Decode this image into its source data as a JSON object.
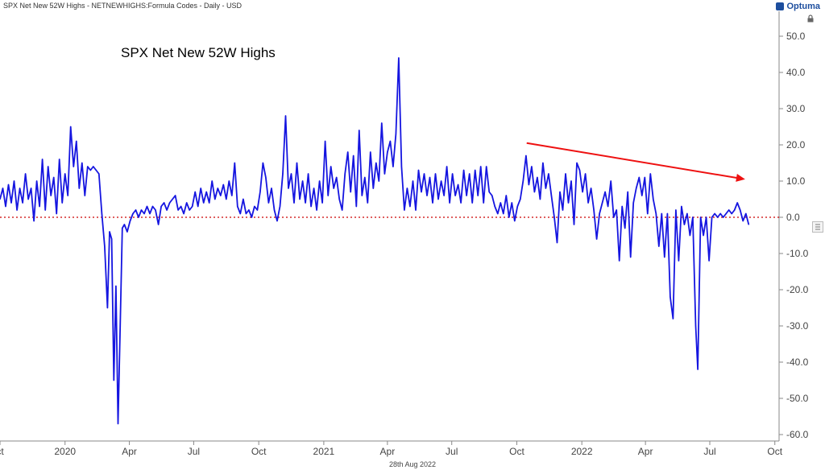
{
  "header": {
    "title": "SPX Net New 52W Highs - NETNEWHIGHS:Formula Codes - Daily - USD"
  },
  "brand": {
    "name": "Optuma",
    "color": "#1d4e9e"
  },
  "footer": {
    "date": "28th Aug 2022"
  },
  "icons": {
    "lock": "lock-icon",
    "side": "settings-icon"
  },
  "chart_data": {
    "type": "line",
    "title": "SPX Net New 52W Highs",
    "xlabel": "",
    "ylabel": "",
    "ylim": [
      -62,
      55
    ],
    "y_ticks": [
      "50.0",
      "40.0",
      "30.0",
      "20.0",
      "10.0",
      "0.0",
      "-10.0",
      "-20.0",
      "-30.0",
      "-40.0",
      "-50.0",
      "-60.0"
    ],
    "x_ticks": [
      "ct",
      "2020",
      "Apr",
      "Jul",
      "Oct",
      "2021",
      "Apr",
      "Jul",
      "Oct",
      "2022",
      "Apr",
      "Jul",
      "Oct"
    ],
    "x_tick_dates": [
      "2019-10-01",
      "2020-01-01",
      "2020-04-01",
      "2020-07-01",
      "2020-10-01",
      "2021-01-01",
      "2021-04-01",
      "2021-07-01",
      "2021-10-01",
      "2022-01-01",
      "2022-04-01",
      "2022-07-01",
      "2022-10-01"
    ],
    "x_range": [
      "2019-10-01",
      "2022-10-07"
    ],
    "reference_line": {
      "y": 0,
      "color": "#cc0000",
      "style": "dotted"
    },
    "trend_arrow": {
      "from": {
        "x": "2021-10-15",
        "y": 20.5
      },
      "to": {
        "x": "2022-08-20",
        "y": 10.5
      },
      "color": "#ee1111"
    },
    "series": [
      {
        "color": "#1515e0",
        "points": [
          [
            "2019-10-01",
            5
          ],
          [
            "2019-10-05",
            8
          ],
          [
            "2019-10-09",
            3
          ],
          [
            "2019-10-13",
            9
          ],
          [
            "2019-10-17",
            4
          ],
          [
            "2019-10-21",
            10
          ],
          [
            "2019-10-25",
            2
          ],
          [
            "2019-10-29",
            8
          ],
          [
            "2019-11-02",
            4
          ],
          [
            "2019-11-06",
            12
          ],
          [
            "2019-11-10",
            5
          ],
          [
            "2019-11-14",
            8
          ],
          [
            "2019-11-18",
            -1
          ],
          [
            "2019-11-22",
            10
          ],
          [
            "2019-11-26",
            3
          ],
          [
            "2019-11-30",
            16
          ],
          [
            "2019-12-04",
            2
          ],
          [
            "2019-12-08",
            14
          ],
          [
            "2019-12-12",
            6
          ],
          [
            "2019-12-16",
            11
          ],
          [
            "2019-12-20",
            1
          ],
          [
            "2019-12-24",
            16
          ],
          [
            "2019-12-28",
            4
          ],
          [
            "2020-01-01",
            12
          ],
          [
            "2020-01-05",
            6
          ],
          [
            "2020-01-09",
            25
          ],
          [
            "2020-01-13",
            14
          ],
          [
            "2020-01-17",
            21
          ],
          [
            "2020-01-21",
            8
          ],
          [
            "2020-01-25",
            15
          ],
          [
            "2020-01-29",
            6
          ],
          [
            "2020-02-02",
            14
          ],
          [
            "2020-02-06",
            13
          ],
          [
            "2020-02-10",
            14
          ],
          [
            "2020-02-14",
            13
          ],
          [
            "2020-02-18",
            12
          ],
          [
            "2020-02-22",
            1
          ],
          [
            "2020-02-26",
            -8
          ],
          [
            "2020-03-01",
            -25
          ],
          [
            "2020-03-04",
            -4
          ],
          [
            "2020-03-07",
            -6
          ],
          [
            "2020-03-10",
            -45
          ],
          [
            "2020-03-13",
            -19
          ],
          [
            "2020-03-16",
            -57
          ],
          [
            "2020-03-19",
            -30
          ],
          [
            "2020-03-22",
            -3
          ],
          [
            "2020-03-25",
            -2
          ],
          [
            "2020-03-29",
            -4
          ],
          [
            "2020-04-02",
            -1
          ],
          [
            "2020-04-06",
            1
          ],
          [
            "2020-04-10",
            2
          ],
          [
            "2020-04-14",
            0
          ],
          [
            "2020-04-18",
            2
          ],
          [
            "2020-04-22",
            1
          ],
          [
            "2020-04-26",
            3
          ],
          [
            "2020-04-30",
            1
          ],
          [
            "2020-05-04",
            3
          ],
          [
            "2020-05-08",
            2
          ],
          [
            "2020-05-12",
            -2
          ],
          [
            "2020-05-16",
            3
          ],
          [
            "2020-05-20",
            4
          ],
          [
            "2020-05-24",
            2
          ],
          [
            "2020-05-28",
            4
          ],
          [
            "2020-06-01",
            5
          ],
          [
            "2020-06-05",
            6
          ],
          [
            "2020-06-09",
            2
          ],
          [
            "2020-06-13",
            3
          ],
          [
            "2020-06-17",
            1
          ],
          [
            "2020-06-21",
            4
          ],
          [
            "2020-06-25",
            2
          ],
          [
            "2020-06-29",
            3
          ],
          [
            "2020-07-03",
            7
          ],
          [
            "2020-07-07",
            3
          ],
          [
            "2020-07-11",
            8
          ],
          [
            "2020-07-15",
            4
          ],
          [
            "2020-07-19",
            7
          ],
          [
            "2020-07-23",
            4
          ],
          [
            "2020-07-27",
            10
          ],
          [
            "2020-07-31",
            5
          ],
          [
            "2020-08-04",
            8
          ],
          [
            "2020-08-08",
            6
          ],
          [
            "2020-08-12",
            9
          ],
          [
            "2020-08-16",
            5
          ],
          [
            "2020-08-20",
            10
          ],
          [
            "2020-08-24",
            6
          ],
          [
            "2020-08-28",
            15
          ],
          [
            "2020-09-01",
            3
          ],
          [
            "2020-09-05",
            1
          ],
          [
            "2020-09-09",
            5
          ],
          [
            "2020-09-13",
            1
          ],
          [
            "2020-09-17",
            2
          ],
          [
            "2020-09-21",
            0
          ],
          [
            "2020-09-25",
            3
          ],
          [
            "2020-09-29",
            2
          ],
          [
            "2020-10-03",
            7
          ],
          [
            "2020-10-07",
            15
          ],
          [
            "2020-10-11",
            11
          ],
          [
            "2020-10-15",
            4
          ],
          [
            "2020-10-19",
            8
          ],
          [
            "2020-10-23",
            2
          ],
          [
            "2020-10-27",
            -1
          ],
          [
            "2020-10-31",
            3
          ],
          [
            "2020-11-04",
            12
          ],
          [
            "2020-11-08",
            28
          ],
          [
            "2020-11-12",
            8
          ],
          [
            "2020-11-16",
            12
          ],
          [
            "2020-11-20",
            4
          ],
          [
            "2020-11-24",
            15
          ],
          [
            "2020-11-28",
            5
          ],
          [
            "2020-12-02",
            10
          ],
          [
            "2020-12-06",
            4
          ],
          [
            "2020-12-10",
            12
          ],
          [
            "2020-12-14",
            3
          ],
          [
            "2020-12-18",
            8
          ],
          [
            "2020-12-22",
            2
          ],
          [
            "2020-12-26",
            10
          ],
          [
            "2020-12-30",
            4
          ],
          [
            "2021-01-03",
            21
          ],
          [
            "2021-01-07",
            6
          ],
          [
            "2021-01-11",
            14
          ],
          [
            "2021-01-15",
            8
          ],
          [
            "2021-01-19",
            11
          ],
          [
            "2021-01-23",
            5
          ],
          [
            "2021-01-27",
            2
          ],
          [
            "2021-01-31",
            12
          ],
          [
            "2021-02-04",
            18
          ],
          [
            "2021-02-08",
            7
          ],
          [
            "2021-02-12",
            17
          ],
          [
            "2021-02-16",
            3
          ],
          [
            "2021-02-20",
            24
          ],
          [
            "2021-02-24",
            6
          ],
          [
            "2021-02-28",
            11
          ],
          [
            "2021-03-04",
            4
          ],
          [
            "2021-03-08",
            18
          ],
          [
            "2021-03-12",
            8
          ],
          [
            "2021-03-16",
            15
          ],
          [
            "2021-03-20",
            10
          ],
          [
            "2021-03-24",
            26
          ],
          [
            "2021-03-28",
            12
          ],
          [
            "2021-04-01",
            18
          ],
          [
            "2021-04-05",
            21
          ],
          [
            "2021-04-09",
            14
          ],
          [
            "2021-04-13",
            23
          ],
          [
            "2021-04-17",
            44
          ],
          [
            "2021-04-21",
            14
          ],
          [
            "2021-04-25",
            2
          ],
          [
            "2021-04-29",
            8
          ],
          [
            "2021-05-03",
            3
          ],
          [
            "2021-05-07",
            10
          ],
          [
            "2021-05-11",
            2
          ],
          [
            "2021-05-15",
            13
          ],
          [
            "2021-05-19",
            7
          ],
          [
            "2021-05-23",
            12
          ],
          [
            "2021-05-27",
            6
          ],
          [
            "2021-05-31",
            11
          ],
          [
            "2021-06-04",
            4
          ],
          [
            "2021-06-08",
            12
          ],
          [
            "2021-06-12",
            5
          ],
          [
            "2021-06-16",
            10
          ],
          [
            "2021-06-20",
            6
          ],
          [
            "2021-06-24",
            14
          ],
          [
            "2021-06-28",
            4
          ],
          [
            "2021-07-02",
            12
          ],
          [
            "2021-07-06",
            6
          ],
          [
            "2021-07-10",
            9
          ],
          [
            "2021-07-14",
            4
          ],
          [
            "2021-07-18",
            13
          ],
          [
            "2021-07-22",
            6
          ],
          [
            "2021-07-26",
            12
          ],
          [
            "2021-07-30",
            4
          ],
          [
            "2021-08-03",
            13
          ],
          [
            "2021-08-07",
            6
          ],
          [
            "2021-08-11",
            14
          ],
          [
            "2021-08-15",
            4
          ],
          [
            "2021-08-19",
            14
          ],
          [
            "2021-08-23",
            7
          ],
          [
            "2021-08-27",
            6
          ],
          [
            "2021-08-31",
            3
          ],
          [
            "2021-09-04",
            1
          ],
          [
            "2021-09-08",
            4
          ],
          [
            "2021-09-12",
            1
          ],
          [
            "2021-09-16",
            6
          ],
          [
            "2021-09-20",
            0
          ],
          [
            "2021-09-24",
            4
          ],
          [
            "2021-09-28",
            -1
          ],
          [
            "2021-10-02",
            3
          ],
          [
            "2021-10-06",
            5
          ],
          [
            "2021-10-10",
            10
          ],
          [
            "2021-10-14",
            17
          ],
          [
            "2021-10-18",
            9
          ],
          [
            "2021-10-22",
            14
          ],
          [
            "2021-10-26",
            7
          ],
          [
            "2021-10-30",
            11
          ],
          [
            "2021-11-03",
            5
          ],
          [
            "2021-11-07",
            15
          ],
          [
            "2021-11-11",
            8
          ],
          [
            "2021-11-15",
            12
          ],
          [
            "2021-11-19",
            6
          ],
          [
            "2021-11-23",
            0
          ],
          [
            "2021-11-27",
            -7
          ],
          [
            "2021-12-01",
            7
          ],
          [
            "2021-12-05",
            2
          ],
          [
            "2021-12-09",
            12
          ],
          [
            "2021-12-13",
            4
          ],
          [
            "2021-12-17",
            10
          ],
          [
            "2021-12-21",
            -2
          ],
          [
            "2021-12-25",
            15
          ],
          [
            "2021-12-29",
            13
          ],
          [
            "2022-01-02",
            7
          ],
          [
            "2022-01-06",
            12
          ],
          [
            "2022-01-10",
            4
          ],
          [
            "2022-01-14",
            8
          ],
          [
            "2022-01-18",
            2
          ],
          [
            "2022-01-22",
            -6
          ],
          [
            "2022-01-26",
            1
          ],
          [
            "2022-01-30",
            4
          ],
          [
            "2022-02-03",
            7
          ],
          [
            "2022-02-07",
            3
          ],
          [
            "2022-02-11",
            10
          ],
          [
            "2022-02-15",
            0
          ],
          [
            "2022-02-19",
            2
          ],
          [
            "2022-02-23",
            -12
          ],
          [
            "2022-02-27",
            3
          ],
          [
            "2022-03-03",
            -3
          ],
          [
            "2022-03-07",
            7
          ],
          [
            "2022-03-11",
            -11
          ],
          [
            "2022-03-15",
            4
          ],
          [
            "2022-03-19",
            8
          ],
          [
            "2022-03-23",
            11
          ],
          [
            "2022-03-27",
            6
          ],
          [
            "2022-03-31",
            11
          ],
          [
            "2022-04-04",
            1
          ],
          [
            "2022-04-08",
            12
          ],
          [
            "2022-04-12",
            5
          ],
          [
            "2022-04-16",
            1
          ],
          [
            "2022-04-20",
            -8
          ],
          [
            "2022-04-24",
            1
          ],
          [
            "2022-04-28",
            -11
          ],
          [
            "2022-05-02",
            1
          ],
          [
            "2022-05-06",
            -22
          ],
          [
            "2022-05-10",
            -28
          ],
          [
            "2022-05-14",
            2
          ],
          [
            "2022-05-18",
            -12
          ],
          [
            "2022-05-22",
            3
          ],
          [
            "2022-05-26",
            -2
          ],
          [
            "2022-05-30",
            1
          ],
          [
            "2022-06-03",
            -5
          ],
          [
            "2022-06-07",
            0
          ],
          [
            "2022-06-11",
            -30
          ],
          [
            "2022-06-14",
            -42
          ],
          [
            "2022-06-18",
            0
          ],
          [
            "2022-06-22",
            -5
          ],
          [
            "2022-06-26",
            0
          ],
          [
            "2022-06-30",
            -12
          ],
          [
            "2022-07-04",
            0
          ],
          [
            "2022-07-08",
            1
          ],
          [
            "2022-07-12",
            0
          ],
          [
            "2022-07-16",
            1
          ],
          [
            "2022-07-20",
            0
          ],
          [
            "2022-07-24",
            1
          ],
          [
            "2022-07-28",
            2
          ],
          [
            "2022-08-01",
            1
          ],
          [
            "2022-08-05",
            2
          ],
          [
            "2022-08-09",
            4
          ],
          [
            "2022-08-13",
            2
          ],
          [
            "2022-08-17",
            -1
          ],
          [
            "2022-08-21",
            1
          ],
          [
            "2022-08-25",
            -2
          ]
        ]
      }
    ]
  }
}
